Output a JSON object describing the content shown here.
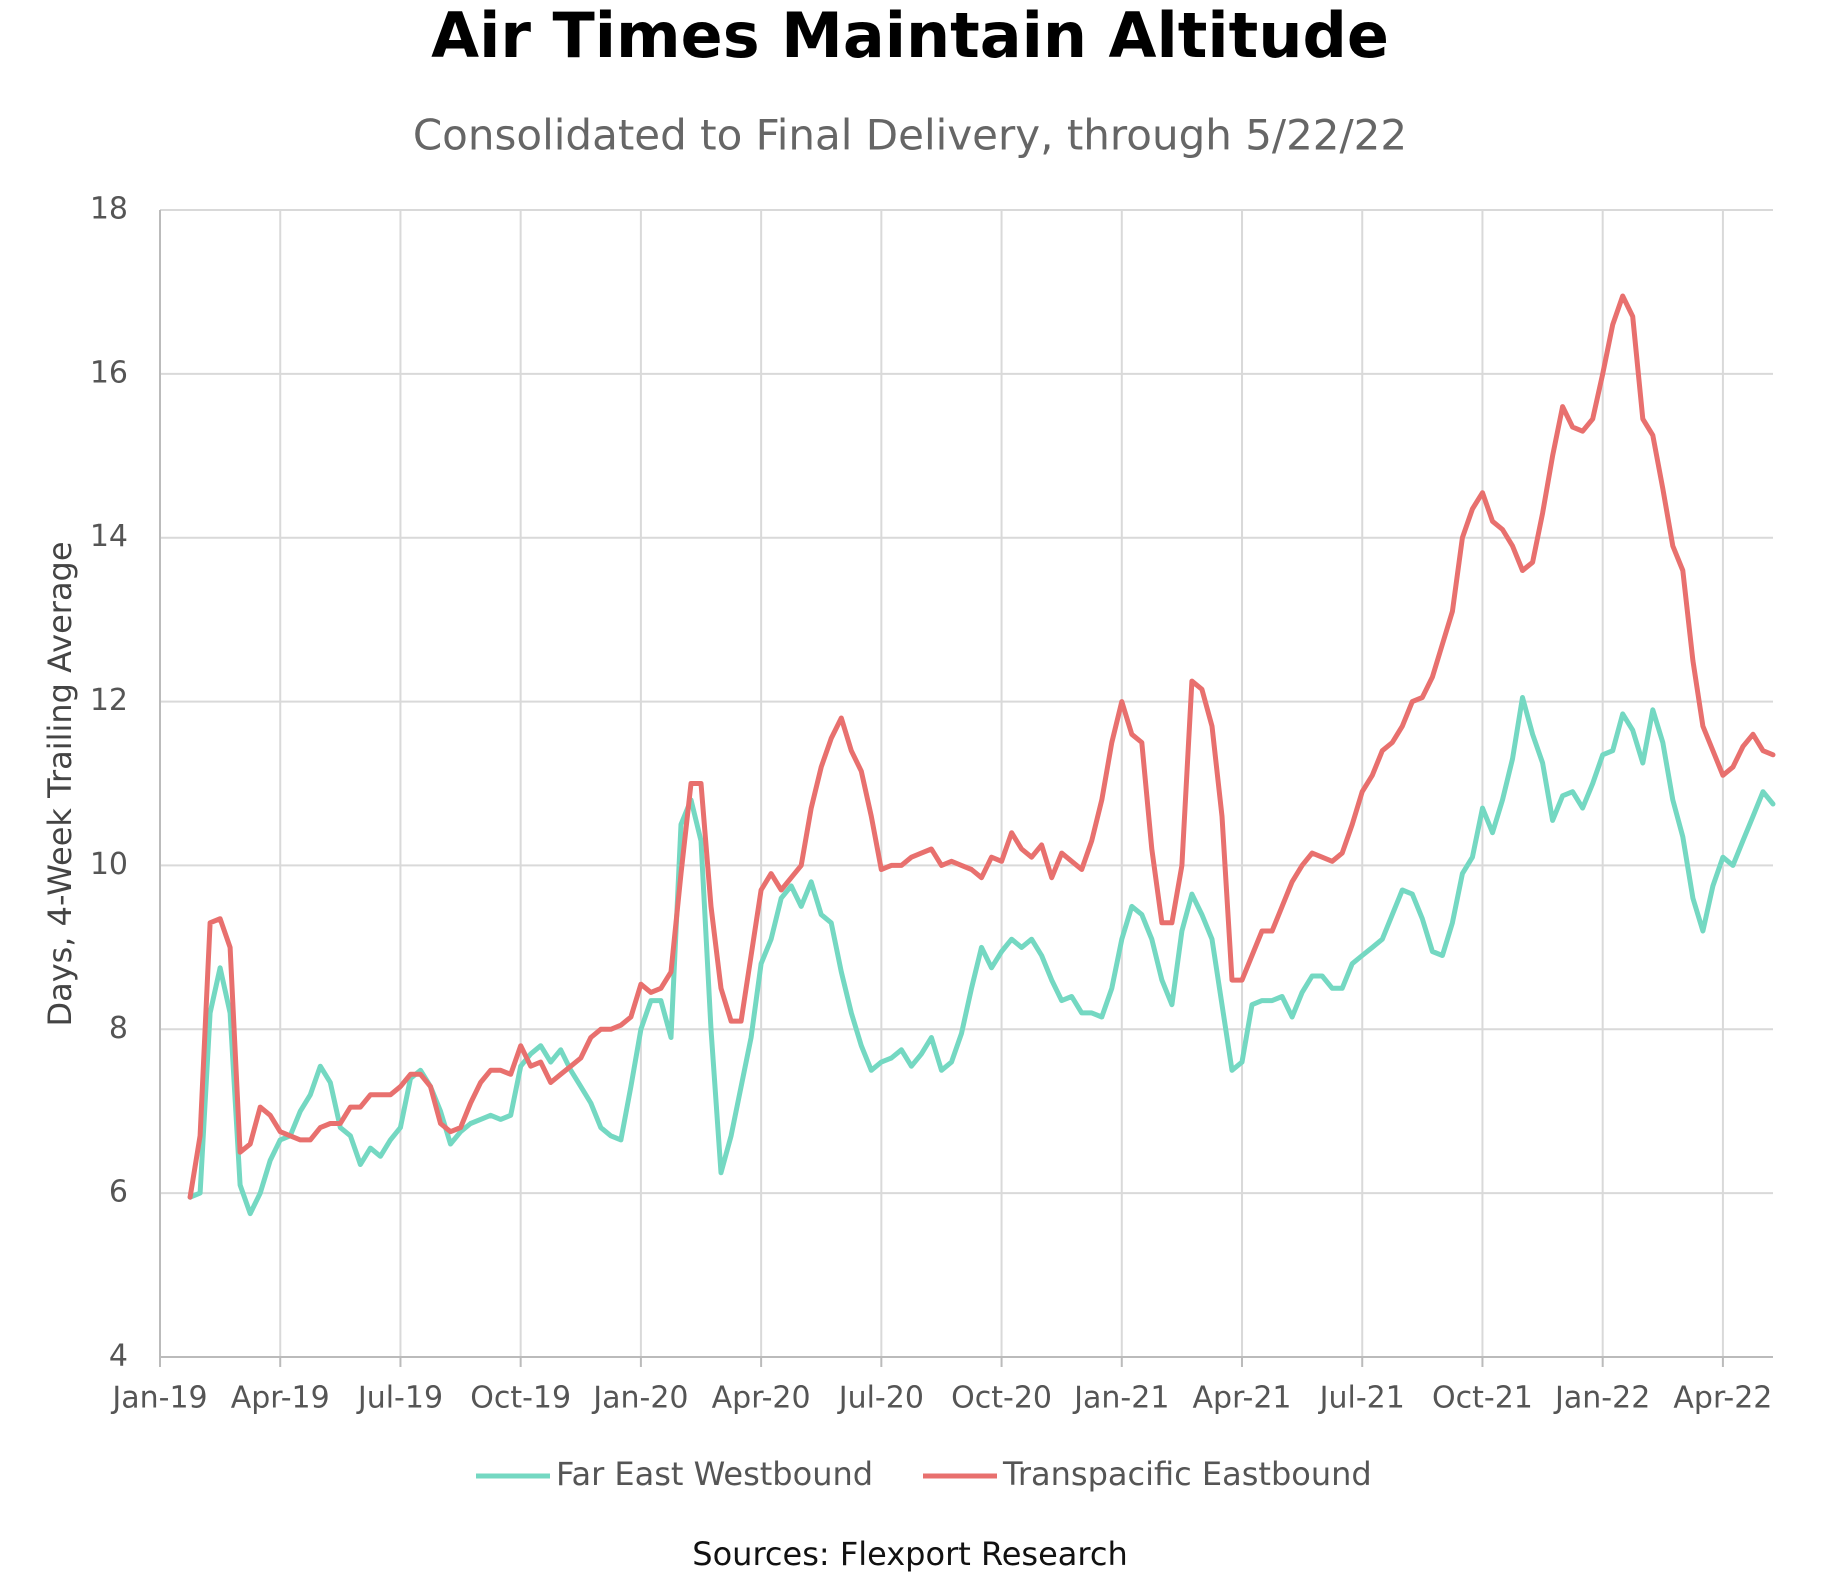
{
  "chart_data": {
    "type": "line",
    "title": "Air Times Maintain Altitude",
    "subtitle": "Consolidated to Final Delivery, through 5/22/22",
    "y_label": "Days, 4-Week Trailing Average",
    "source": "Sources: Flexport Research",
    "categories": [
      "Jan-19",
      null,
      null,
      null,
      null,
      null,
      null,
      null,
      null,
      null,
      null,
      null,
      "Apr-19",
      null,
      null,
      null,
      null,
      null,
      null,
      null,
      null,
      null,
      null,
      null,
      "Jul-19",
      null,
      null,
      null,
      null,
      null,
      null,
      null,
      null,
      null,
      null,
      null,
      "Oct-19",
      null,
      null,
      null,
      null,
      null,
      null,
      null,
      null,
      null,
      null,
      null,
      "Jan-20",
      null,
      null,
      null,
      null,
      null,
      null,
      null,
      null,
      null,
      null,
      null,
      "Apr-20",
      null,
      null,
      null,
      null,
      null,
      null,
      null,
      null,
      null,
      null,
      null,
      "Jul-20",
      null,
      null,
      null,
      null,
      null,
      null,
      null,
      null,
      null,
      null,
      null,
      "Oct-20",
      null,
      null,
      null,
      null,
      null,
      null,
      null,
      null,
      null,
      null,
      null,
      "Jan-21",
      null,
      null,
      null,
      null,
      null,
      null,
      null,
      null,
      null,
      null,
      null,
      "Apr-21",
      null,
      null,
      null,
      null,
      null,
      null,
      null,
      null,
      null,
      null,
      null,
      "Jul-21",
      null,
      null,
      null,
      null,
      null,
      null,
      null,
      null,
      null,
      null,
      null,
      "Oct-21",
      null,
      null,
      null,
      null,
      null,
      null,
      null,
      null,
      null,
      null,
      null,
      "Jan-22",
      null,
      null,
      null,
      null,
      null,
      null,
      null,
      null,
      null,
      null,
      null,
      "Apr-22",
      null,
      null,
      null,
      null,
      null
    ],
    "series": [
      {
        "name": "Far East Westbound",
        "color": "#74d8c2",
        "values": [
          null,
          null,
          null,
          5.95,
          6.0,
          8.2,
          8.75,
          8.2,
          6.1,
          5.75,
          6.0,
          6.4,
          6.65,
          6.7,
          7.0,
          7.2,
          7.55,
          7.35,
          6.8,
          6.7,
          6.35,
          6.55,
          6.45,
          6.65,
          6.8,
          7.4,
          7.5,
          7.3,
          7.0,
          6.6,
          6.75,
          6.85,
          6.9,
          6.95,
          6.9,
          6.95,
          7.55,
          7.7,
          7.8,
          7.6,
          7.75,
          7.5,
          7.3,
          7.1,
          6.8,
          6.7,
          6.65,
          7.3,
          8.0,
          8.35,
          8.35,
          7.9,
          10.5,
          10.8,
          10.3,
          8.0,
          6.25,
          6.7,
          7.3,
          7.9,
          8.8,
          9.1,
          9.6,
          9.75,
          9.5,
          9.8,
          9.4,
          9.3,
          8.7,
          8.2,
          7.8,
          7.5,
          7.6,
          7.65,
          7.75,
          7.55,
          7.7,
          7.9,
          7.5,
          7.6,
          7.95,
          8.5,
          9.0,
          8.75,
          8.95,
          9.1,
          9.0,
          9.1,
          8.9,
          8.6,
          8.35,
          8.4,
          8.2,
          8.2,
          8.15,
          8.5,
          9.1,
          9.5,
          9.4,
          9.1,
          8.6,
          8.3,
          9.2,
          9.65,
          9.4,
          9.1,
          8.3,
          7.5,
          7.6,
          8.3,
          8.35,
          8.35,
          8.4,
          8.15,
          8.45,
          8.65,
          8.65,
          8.5,
          8.5,
          8.8,
          8.9,
          9.0,
          9.1,
          9.4,
          9.7,
          9.65,
          9.35,
          8.95,
          8.9,
          9.3,
          9.9,
          10.1,
          10.7,
          10.4,
          10.8,
          11.3,
          12.05,
          11.6,
          11.25,
          10.55,
          10.85,
          10.9,
          10.7,
          11.0,
          11.35,
          11.4,
          11.85,
          11.65,
          11.25,
          11.9,
          11.5,
          10.8,
          10.35,
          9.6,
          9.2,
          9.75,
          10.1,
          10.0,
          10.3,
          10.6,
          10.9,
          10.75
        ]
      },
      {
        "name": "Transpacific Eastbound",
        "color": "#e8706e",
        "values": [
          null,
          null,
          null,
          5.95,
          6.7,
          9.3,
          9.35,
          9.0,
          6.5,
          6.6,
          7.05,
          6.95,
          6.75,
          6.7,
          6.65,
          6.65,
          6.8,
          6.85,
          6.85,
          7.05,
          7.05,
          7.2,
          7.2,
          7.2,
          7.3,
          7.45,
          7.45,
          7.3,
          6.85,
          6.75,
          6.8,
          7.1,
          7.35,
          7.5,
          7.5,
          7.45,
          7.8,
          7.55,
          7.6,
          7.35,
          7.45,
          7.55,
          7.65,
          7.9,
          8.0,
          8.0,
          8.05,
          8.15,
          8.55,
          8.45,
          8.5,
          8.7,
          9.9,
          11.0,
          11.0,
          9.5,
          8.5,
          8.1,
          8.1,
          8.9,
          9.7,
          9.9,
          9.7,
          9.85,
          10.0,
          10.7,
          11.2,
          11.55,
          11.8,
          11.4,
          11.15,
          10.6,
          9.95,
          10.0,
          10.0,
          10.1,
          10.15,
          10.2,
          10.0,
          10.05,
          10.0,
          9.95,
          9.85,
          10.1,
          10.05,
          10.4,
          10.2,
          10.1,
          10.25,
          9.85,
          10.15,
          10.05,
          9.95,
          10.3,
          10.8,
          11.5,
          12.0,
          11.6,
          11.5,
          10.2,
          9.3,
          9.3,
          10.0,
          12.25,
          12.15,
          11.7,
          10.6,
          8.6,
          8.6,
          8.9,
          9.2,
          9.2,
          9.5,
          9.8,
          10.0,
          10.15,
          10.1,
          10.05,
          10.15,
          10.5,
          10.9,
          11.1,
          11.4,
          11.5,
          11.7,
          12.0,
          12.05,
          12.3,
          12.7,
          13.1,
          14.0,
          14.35,
          14.55,
          14.2,
          14.1,
          13.9,
          13.6,
          13.7,
          14.3,
          15.0,
          15.6,
          15.35,
          15.3,
          15.45,
          16.0,
          16.6,
          16.95,
          16.7,
          15.45,
          15.25,
          14.6,
          13.9,
          13.6,
          12.5,
          11.7,
          11.4,
          11.1,
          11.2,
          11.45,
          11.6,
          11.4,
          11.35
        ]
      }
    ],
    "ylim": [
      4,
      18
    ],
    "yticks": [
      4,
      6,
      8,
      10,
      12,
      14,
      16,
      18
    ],
    "grid": true,
    "legend": "bottom"
  }
}
